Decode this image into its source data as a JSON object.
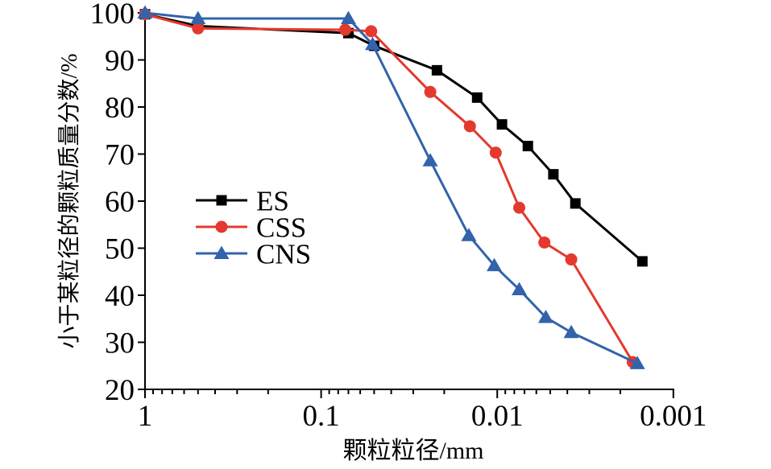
{
  "chart_data": {
    "type": "line",
    "title": "",
    "xlabel": "颗粒粒径/mm",
    "ylabel": "小于某粒径的颗粒质量分数/%",
    "x_scale": "log-reversed",
    "xlim": [
      1,
      0.001
    ],
    "ylim": [
      20,
      100
    ],
    "x_ticks": [
      "1",
      "0.1",
      "0.01",
      "0.001"
    ],
    "y_ticks": [
      20,
      30,
      40,
      50,
      60,
      70,
      80,
      90,
      100
    ],
    "grid": false,
    "legend_position": "inside-left-middle",
    "series": [
      {
        "name": "ES",
        "color": "#000000",
        "marker": "square",
        "x": [
          1,
          0.5,
          0.07,
          0.05,
          0.022,
          0.013,
          0.0094,
          0.0067,
          0.0048,
          0.0036,
          0.0015
        ],
        "y": [
          99.7,
          97.2,
          95.7,
          93.0,
          87.8,
          82.0,
          76.3,
          71.7,
          65.7,
          59.5,
          47.2
        ]
      },
      {
        "name": "CSS",
        "color": "#e4392e",
        "marker": "circle",
        "x": [
          1,
          0.5,
          0.073,
          0.052,
          0.024,
          0.0143,
          0.0102,
          0.0075,
          0.0054,
          0.0038,
          0.0017
        ],
        "y": [
          99.7,
          96.7,
          96.4,
          96.1,
          83.2,
          75.9,
          70.3,
          58.6,
          51.2,
          47.6,
          25.8
        ]
      },
      {
        "name": "CNS",
        "color": "#3263ab",
        "marker": "triangle",
        "x": [
          1,
          0.5,
          0.07,
          0.051,
          0.024,
          0.0145,
          0.0104,
          0.0075,
          0.0053,
          0.0038,
          0.0016
        ],
        "y": [
          100,
          98.8,
          98.8,
          93.3,
          68.6,
          52.7,
          46.3,
          41.2,
          35.3,
          32.1,
          25.5
        ]
      }
    ]
  }
}
